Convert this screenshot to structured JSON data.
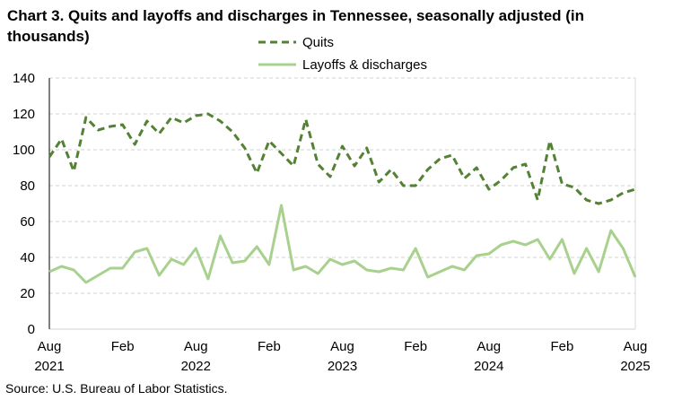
{
  "chart_data": {
    "type": "line",
    "title": "Chart 3. Quits and layoffs and discharges in Tennessee, seasonally adjusted (in thousands)",
    "source": "Source: U.S. Bureau of Labor Statistics.",
    "ylim": [
      0,
      140
    ],
    "yticks": [
      0,
      20,
      40,
      60,
      80,
      100,
      120,
      140
    ],
    "grid": true,
    "legend_position": "top-center",
    "x_start": "2021-08",
    "x_end": "2025-08",
    "xtick_labels": [
      {
        "month": "Aug",
        "year": "2021",
        "index": 0
      },
      {
        "month": "Feb",
        "year": "",
        "index": 6
      },
      {
        "month": "Aug",
        "year": "2022",
        "index": 12
      },
      {
        "month": "Feb",
        "year": "",
        "index": 18
      },
      {
        "month": "Aug",
        "year": "2023",
        "index": 24
      },
      {
        "month": "Feb",
        "year": "",
        "index": 30
      },
      {
        "month": "Aug",
        "year": "2024",
        "index": 36
      },
      {
        "month": "Feb",
        "year": "",
        "index": 42
      },
      {
        "month": "Aug",
        "year": "2025",
        "index": 48
      }
    ],
    "series": [
      {
        "name": "Quits",
        "color": "#548235",
        "style": "dashed",
        "values": [
          96,
          106,
          88,
          118,
          111,
          113,
          114,
          103,
          116,
          109,
          118,
          115,
          119,
          120,
          116,
          110,
          101,
          87,
          105,
          98,
          91,
          117,
          92,
          85,
          102,
          91,
          101,
          82,
          89,
          80,
          80,
          89,
          95,
          97,
          84,
          90,
          78,
          83,
          90,
          92,
          72,
          105,
          81,
          79,
          72,
          70,
          72,
          76,
          78
        ]
      },
      {
        "name": "Layoffs & discharges",
        "color": "#A9D18E",
        "style": "solid",
        "values": [
          32,
          35,
          33,
          26,
          30,
          34,
          34,
          43,
          45,
          30,
          39,
          36,
          45,
          28,
          52,
          37,
          38,
          46,
          36,
          69,
          33,
          35,
          31,
          39,
          36,
          38,
          33,
          32,
          34,
          33,
          45,
          29,
          32,
          35,
          33,
          41,
          42,
          47,
          49,
          47,
          50,
          39,
          50,
          31,
          45,
          32,
          55,
          45,
          29
        ]
      }
    ]
  }
}
